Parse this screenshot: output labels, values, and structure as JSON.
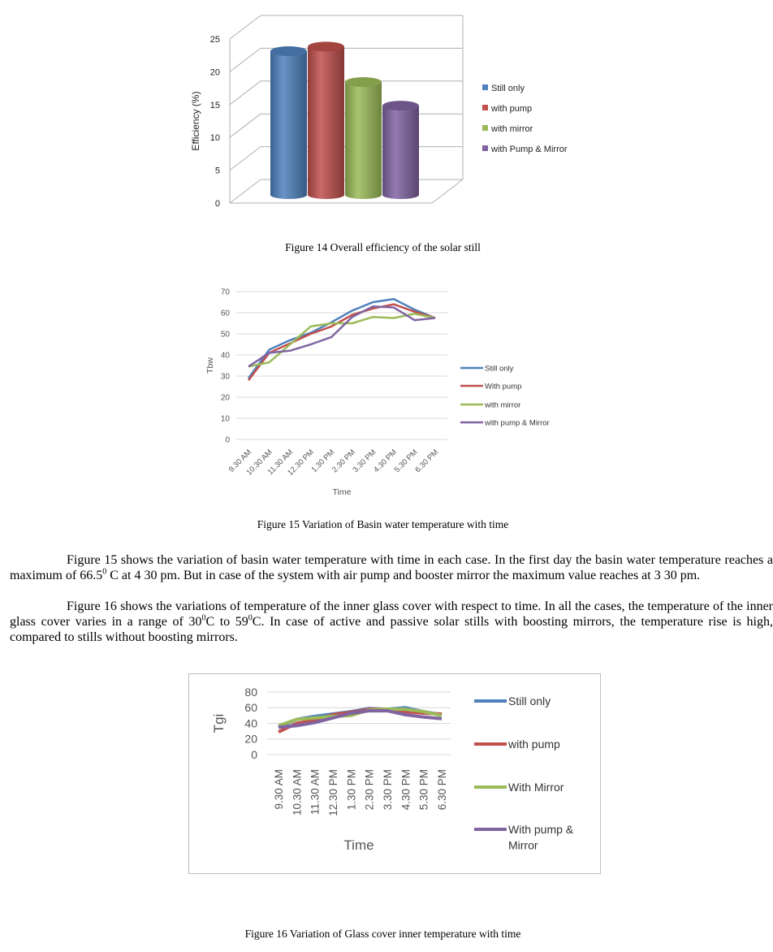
{
  "figure14": {
    "caption": "Figure 14 Overall efficiency of the solar still",
    "chart_data": {
      "type": "bar",
      "style": "3d-cylinder",
      "categories": [
        "Still only",
        "with pump",
        "with mirror",
        "with Pump & Mirror"
      ],
      "values": [
        21.9,
        22.6,
        17.2,
        13.6
      ],
      "colors": [
        "#4f81bd",
        "#c0504d",
        "#9bbb59",
        "#8064a2"
      ],
      "title": "",
      "xlabel": "",
      "ylabel": "Efficiency (%)",
      "ylim": [
        0,
        25
      ],
      "yticks": [
        "0",
        "5",
        "10",
        "15",
        "20",
        "25"
      ],
      "grid": true,
      "legend": "right"
    }
  },
  "figure15": {
    "caption": "Figure 15 Variation of Basin water temperature with time",
    "chart_data": {
      "type": "line",
      "categories": [
        "9.30 AM",
        "10.30 AM",
        "11.30 AM",
        "12.30 PM",
        "1.30 PM",
        "2.30 PM",
        "3.30 PM",
        "4.30 PM",
        "5.30 PM",
        "6.30 PM"
      ],
      "series": [
        {
          "name": "Still only",
          "color": "#4f81bd",
          "values": [
            29,
            42.5,
            47,
            50.5,
            55.5,
            61,
            65,
            66.5,
            61.5,
            57.5
          ]
        },
        {
          "name": "With pump",
          "color": "#c0504d",
          "values": [
            28,
            41,
            45.5,
            50,
            53.5,
            59,
            62,
            64,
            60.5,
            57.5
          ]
        },
        {
          "name": "with mirror",
          "color": "#9bbb59",
          "values": [
            34.5,
            36.5,
            45,
            53.5,
            55,
            55,
            58,
            57.5,
            59.5,
            57.5
          ]
        },
        {
          "name": "with pump & Mirror",
          "color": "#8064a2",
          "values": [
            34.5,
            41,
            42,
            45,
            48.5,
            58,
            63,
            62.5,
            56.5,
            57.5
          ]
        }
      ],
      "xlabel": "Time",
      "ylabel": "Tbw",
      "ylim": [
        0,
        70
      ],
      "yticks": [
        "0",
        "10",
        "20",
        "30",
        "40",
        "50",
        "60",
        "70"
      ],
      "grid": true,
      "legend": "right"
    }
  },
  "text": {
    "p1a": "Figure 15 shows the variation of basin water temperature with time in each case. In the first day the basin water temperature reaches a maximum of 66.5",
    "p1sup": "0",
    "p1b": " C at 4 30 pm. But in case of the system with air pump and booster mirror the maximum value reaches at 3 30 pm.",
    "p2a": "Figure 16 shows the variations of temperature of the inner glass cover with respect to time. In all the cases, the temperature of the inner glass cover varies in a range of 30",
    "p2sup1": "0",
    "p2b": "C to 59",
    "p2sup2": "0",
    "p2c": "C. In case of active and passive solar stills with boosting mirrors, the temperature rise is high, compared to stills without boosting mirrors."
  },
  "figure16": {
    "caption": "Figure 16 Variation of Glass cover inner temperature with time",
    "chart_data": {
      "type": "line",
      "categories": [
        "9.30 AM",
        "10.30 AM",
        "11.30 AM",
        "12.30 PM",
        "1.30 PM",
        "2.30 PM",
        "3.30 PM",
        "4.30 PM",
        "5.30 PM",
        "6.30 PM"
      ],
      "series": [
        {
          "name": "Still only",
          "color": "#4f81bd",
          "values": [
            35,
            45,
            49,
            52,
            55,
            59,
            58,
            60,
            55,
            51
          ]
        },
        {
          "name": "with pump",
          "color": "#c0504d",
          "values": [
            29,
            40,
            44,
            51,
            54,
            58,
            58,
            55,
            53,
            52
          ]
        },
        {
          "name": "With Mirror",
          "color": "#9bbb59",
          "values": [
            37,
            45,
            47,
            49,
            50,
            57,
            58,
            58,
            55,
            50
          ]
        },
        {
          "name": "With pump & Mirror",
          "color": "#8064a2",
          "values": [
            35,
            37,
            41,
            47,
            53,
            56,
            56,
            51,
            48,
            46
          ]
        }
      ],
      "xlabel": "Time",
      "ylabel": "Tgi",
      "ylim": [
        0,
        80
      ],
      "yticks": [
        "0",
        "20",
        "40",
        "60",
        "80"
      ],
      "grid": true,
      "legend": "right"
    }
  }
}
